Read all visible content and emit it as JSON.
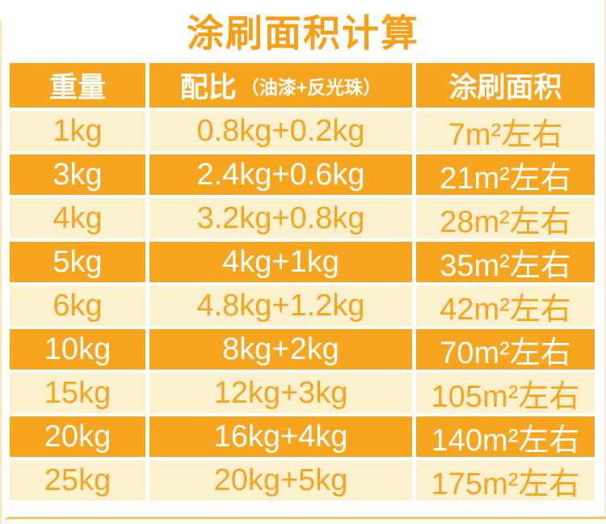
{
  "title": "涂刷面积计算",
  "colors": {
    "orange": "#F7A41E",
    "cream": "#FBF1CF",
    "title_color": "#F99E15",
    "rule_color": "#EFC463",
    "bottom_fill": "#FDFAF0",
    "edge_left": "#FAE3B5",
    "edge_right": "#F2E9E3",
    "header_text": "#FFFFFF"
  },
  "table": {
    "columns": [
      {
        "label": "重量",
        "sub": ""
      },
      {
        "label": "配比",
        "sub": "（油漆+反光珠）"
      },
      {
        "label": "涂刷面积",
        "sub": ""
      }
    ],
    "rows": [
      {
        "weight": "1kg",
        "ratio": "0.8kg+0.2kg",
        "area": "7m²左右",
        "highlight": false
      },
      {
        "weight": "3kg",
        "ratio": "2.4kg+0.6kg",
        "area": "21m²左右",
        "highlight": true
      },
      {
        "weight": "4kg",
        "ratio": "3.2kg+0.8kg",
        "area": "28m²左右",
        "highlight": false
      },
      {
        "weight": "5kg",
        "ratio": "4kg+1kg",
        "area": "35m²左右",
        "highlight": true
      },
      {
        "weight": "6kg",
        "ratio": "4.8kg+1.2kg",
        "area": "42m²左右",
        "highlight": false
      },
      {
        "weight": "10kg",
        "ratio": "8kg+2kg",
        "area": "70m²左右",
        "highlight": true
      },
      {
        "weight": "15kg",
        "ratio": "12kg+3kg",
        "area": "105m²左右",
        "highlight": false
      },
      {
        "weight": "20kg",
        "ratio": "16kg+4kg",
        "area": "140m²左右",
        "highlight": true
      },
      {
        "weight": "25kg",
        "ratio": "20kg+5kg",
        "area": "175m²左右",
        "highlight": false
      }
    ]
  },
  "chart_data": {
    "type": "table",
    "title": "涂刷面积计算",
    "columns": [
      "重量",
      "配比（油漆+反光珠）",
      "涂刷面积"
    ],
    "rows": [
      [
        "1kg",
        "0.8kg+0.2kg",
        "7m²左右"
      ],
      [
        "3kg",
        "2.4kg+0.6kg",
        "21m²左右"
      ],
      [
        "4kg",
        "3.2kg+0.8kg",
        "28m²左右"
      ],
      [
        "5kg",
        "4kg+1kg",
        "35m²左右"
      ],
      [
        "6kg",
        "4.8kg+1.2kg",
        "42m²左右"
      ],
      [
        "10kg",
        "8kg+2kg",
        "70m²左右"
      ],
      [
        "15kg",
        "12kg+3kg",
        "105m²左右"
      ],
      [
        "20kg",
        "16kg+4kg",
        "140m²左右"
      ],
      [
        "25kg",
        "20kg+5kg",
        "175m²左右"
      ]
    ],
    "layout_hints": {
      "zebra_striping": "alternating orange and cream rows",
      "header_background": "#F7A41E",
      "grid": "white 4-5px gutters between cells"
    }
  }
}
